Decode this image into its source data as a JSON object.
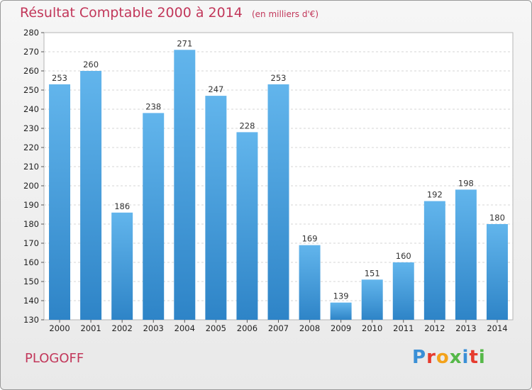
{
  "title": "Résultat Comptable 2000 à 2014",
  "subtitle": "(en milliers d'€)",
  "commune": "PLOGOFF",
  "logo": "Proxiti",
  "colors": {
    "title": "#c2375a",
    "bar_light": "#5fb2ea",
    "bar_dark": "#2f86c9"
  },
  "chart_data": {
    "type": "bar",
    "categories": [
      "2000",
      "2001",
      "2002",
      "2003",
      "2004",
      "2005",
      "2006",
      "2007",
      "2008",
      "2009",
      "2010",
      "2011",
      "2012",
      "2013",
      "2014"
    ],
    "values": [
      253,
      260,
      186,
      238,
      271,
      247,
      228,
      253,
      169,
      139,
      151,
      160,
      192,
      198,
      180
    ],
    "ylim": [
      130,
      280
    ],
    "yticks": [
      130,
      140,
      150,
      160,
      170,
      180,
      190,
      200,
      210,
      220,
      230,
      240,
      250,
      260,
      270,
      280
    ],
    "grid": true
  }
}
